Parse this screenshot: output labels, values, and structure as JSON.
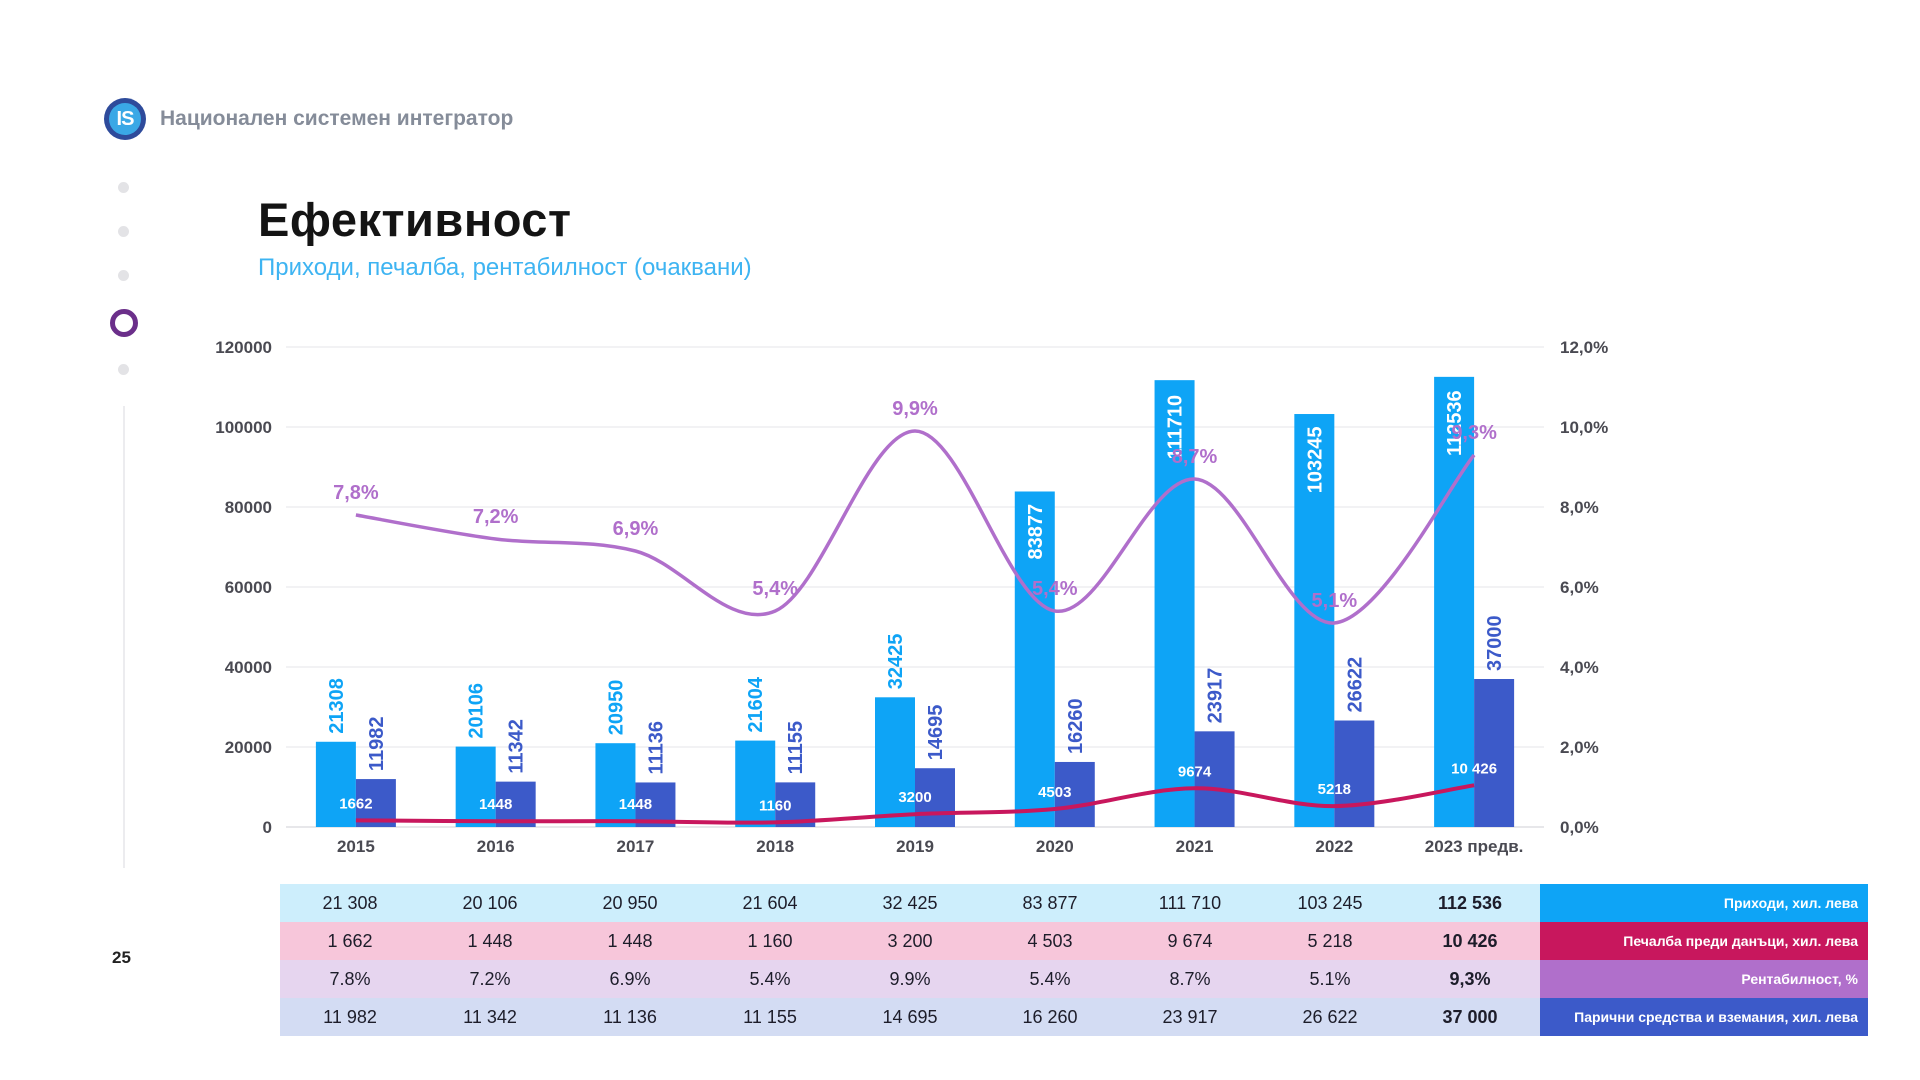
{
  "header": {
    "logo_text": "IS",
    "company": "Национален системен интегратор"
  },
  "page_number": "25",
  "title": "Ефективност",
  "subtitle": "Приходи, печалба, рентабилност (очаквани)",
  "nav": {
    "active_index": 3,
    "count": 5
  },
  "colors": {
    "revenue": "#0ea4f6",
    "cash": "#3c5ac9",
    "profit": "#c8175d",
    "margin": "#b06fcb",
    "row_revenue": "#cdeefc",
    "row_profit": "#f7c6da",
    "row_margin": "#e6d5ef",
    "row_cash": "#d3dcf3"
  },
  "chart_data": {
    "type": "bar",
    "categories": [
      "2015",
      "2016",
      "2017",
      "2018",
      "2019",
      "2020",
      "2021",
      "2022",
      "2023 предв."
    ],
    "ylim_left": [
      0,
      120000
    ],
    "yticks_left": [
      "0",
      "20000",
      "40000",
      "60000",
      "80000",
      "100000",
      "120000"
    ],
    "ylim_right": [
      0,
      12
    ],
    "yticks_right": [
      "0,0%",
      "2,0%",
      "4,0%",
      "6,0%",
      "8,0%",
      "10,0%",
      "12,0%"
    ],
    "series": [
      {
        "kind": "bar",
        "values": [
          21308,
          20106,
          20950,
          21604,
          32425,
          83877,
          111710,
          103245,
          112536
        ],
        "labels": [
          "21308",
          "20106",
          "20950",
          "21604",
          "32425",
          "83877",
          "111710",
          "103245",
          "112536"
        ]
      },
      {
        "kind": "bar",
        "values": [
          11982,
          11342,
          11136,
          11155,
          14695,
          16260,
          23917,
          26622,
          37000
        ],
        "labels": [
          "11982",
          "11342",
          "11136",
          "11155",
          "14695",
          "16260",
          "23917",
          "26622",
          "37000"
        ]
      },
      {
        "kind": "line",
        "values": [
          1662,
          1448,
          1448,
          1160,
          3200,
          4503,
          9674,
          5218,
          10426
        ],
        "labels": [
          "1662",
          "1448",
          "1448",
          "1160",
          "3200",
          "4503",
          "9674",
          "5218",
          "10 426"
        ]
      },
      {
        "kind": "line",
        "axis": "right",
        "values": [
          7.8,
          7.2,
          6.9,
          5.4,
          9.9,
          5.4,
          8.7,
          5.1,
          9.3
        ],
        "labels": [
          "7,8%",
          "7,2%",
          "6,9%",
          "5,4%",
          "9,9%",
          "5,4%",
          "8,7%",
          "5,1%",
          "9,3%"
        ]
      }
    ],
    "grid": true
  },
  "table": {
    "rows": [
      {
        "values": [
          "21 308",
          "20 106",
          "20 950",
          "21 604",
          "32 425",
          "83 877",
          "111 710",
          "103 245",
          "112 536"
        ],
        "label": "Приходи, хил. лева"
      },
      {
        "values": [
          "1 662",
          "1 448",
          "1 448",
          "1 160",
          "3 200",
          "4 503",
          "9 674",
          "5 218",
          "10 426"
        ],
        "label": "Печалба преди данъци, хил. лева"
      },
      {
        "values": [
          "7.8%",
          "7.2%",
          "6.9%",
          "5.4%",
          "9.9%",
          "5.4%",
          "8.7%",
          "5.1%",
          "9,3%"
        ],
        "label": "Рентабилност, %"
      },
      {
        "values": [
          "11 982",
          "11 342",
          "11 136",
          "11 155",
          "14 695",
          "16 260",
          "23 917",
          "26 622",
          "37 000"
        ],
        "label": "Парични средства и вземания, хил. лева"
      }
    ]
  }
}
